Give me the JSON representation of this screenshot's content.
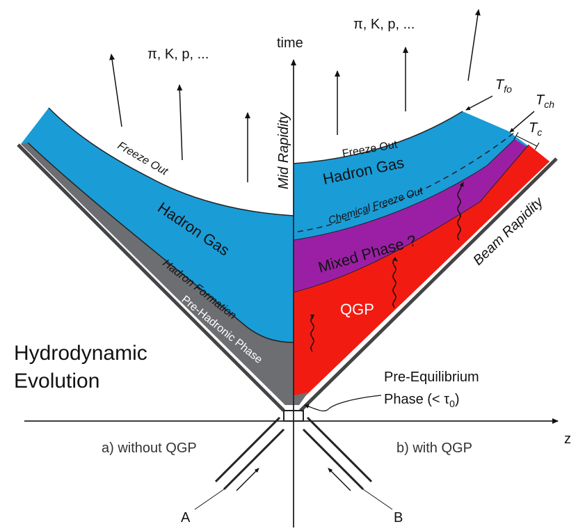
{
  "labels": {
    "time": "time",
    "z": "z",
    "mid_rapidity": "Mid Rapidity",
    "beam_rapidity": "Beam Rapidity",
    "particles_left": "π, K, p, ...",
    "particles_right": "π, K, p, ...",
    "freeze_out_left": "Freeze Out",
    "freeze_out_right": "Freeze Out",
    "hadron_gas_left": "Hadron Gas",
    "hadron_gas_right": "Hadron Gas",
    "hadron_formation": "Hadron Formation",
    "pre_hadronic_phase": "Pre-Hadronic Phase",
    "chemical_freeze_out": "Chemical Freeze Out",
    "mixed_phase": "Mixed Phase ?",
    "qgp": "QGP",
    "pre_equilibrium_line1": "Pre-Equilibrium",
    "pre_equilibrium_line2": "Phase (< τ",
    "pre_equilibrium_sub": "0",
    "pre_equilibrium_close": ")",
    "hydrodynamic_line1": "Hydrodynamic",
    "hydrodynamic_line2": "Evolution",
    "without_qgp": "a) without QGP",
    "with_qgp": "b) with QGP",
    "nucleus_a": "A",
    "nucleus_b": "B",
    "t_fo": "T",
    "t_fo_sub": "fo",
    "t_ch": "T",
    "t_ch_sub": "ch",
    "t_c": "T",
    "t_c_sub": "c"
  },
  "colors": {
    "hadron_gas": "#1a9cd7",
    "pre_hadronic": "#6d6e71",
    "mixed_phase": "#9b1fa5",
    "qgp": "#f21b12",
    "lines": "#222222"
  }
}
